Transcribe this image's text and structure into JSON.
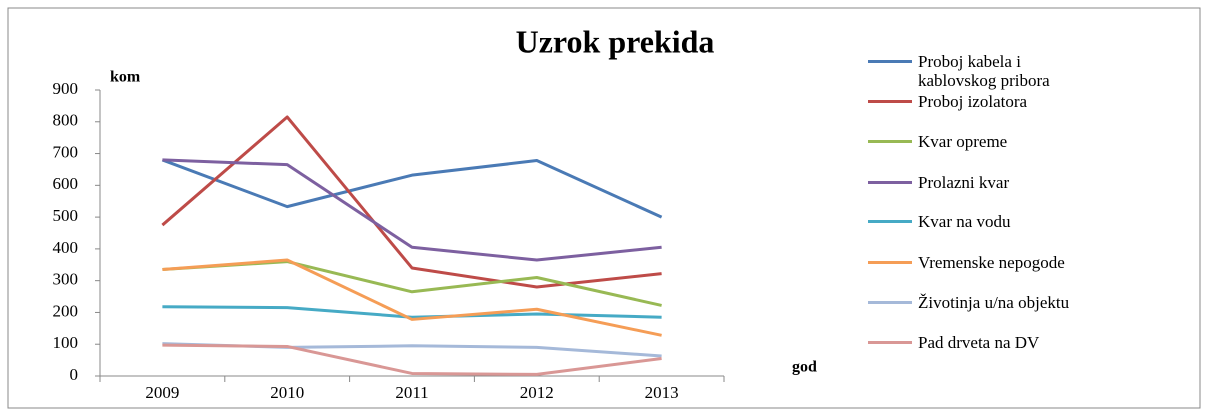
{
  "chart_data": {
    "type": "line",
    "title": "Uzrok prekida",
    "y_label": "kom",
    "x_label": "god",
    "categories": [
      "2009",
      "2010",
      "2011",
      "2012",
      "2013"
    ],
    "ylim": [
      0,
      900
    ],
    "yticks": [
      0,
      100,
      200,
      300,
      400,
      500,
      600,
      700,
      800,
      900
    ],
    "series": [
      {
        "name": "Proboj kabela i kablovskog pribora",
        "color": "#4a7ab5",
        "values": [
          680,
          533,
          632,
          678,
          500
        ]
      },
      {
        "name": "Proboj izolatora",
        "color": "#be4b48",
        "values": [
          475,
          815,
          340,
          280,
          322
        ]
      },
      {
        "name": "Kvar opreme",
        "color": "#98b954",
        "values": [
          335,
          360,
          265,
          310,
          222
        ]
      },
      {
        "name": "Prolazni kvar",
        "color": "#7d60a0",
        "values": [
          680,
          665,
          405,
          365,
          405
        ]
      },
      {
        "name": "Kvar na vodu",
        "color": "#46aac5",
        "values": [
          218,
          215,
          185,
          195,
          185
        ]
      },
      {
        "name": "Vremenske nepogode",
        "color": "#f59d56",
        "values": [
          335,
          365,
          178,
          210,
          128
        ]
      },
      {
        "name": "Životinja u/na objektu",
        "color": "#a5b9d9",
        "values": [
          102,
          90,
          95,
          90,
          63
        ]
      },
      {
        "name": "Pad drveta na DV",
        "color": "#d99795",
        "values": [
          97,
          93,
          8,
          5,
          55
        ]
      }
    ]
  }
}
